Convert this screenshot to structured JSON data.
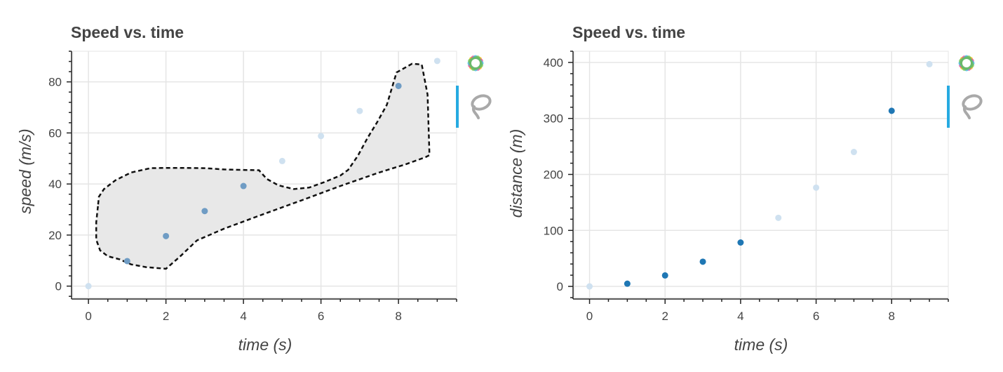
{
  "colors": {
    "point": "#1f77b4",
    "point_faded": "#cfe1f0",
    "point_left": "#6f9cc4",
    "lasso_fill": "#e8e8e8",
    "lasso_stroke": "#111111",
    "grid": "#e5e5e5",
    "axis": "#222222",
    "text": "#444444",
    "active_tool": "#26aae1"
  },
  "toolbar": {
    "logo_icon": "bokeh-logo-icon",
    "lasso_icon": "lasso-select-icon",
    "lasso_active": true
  },
  "chart_data": [
    {
      "type": "scatter",
      "title": "Speed vs. time",
      "xlabel": "time (s)",
      "ylabel": "speed (m/s)",
      "xlim": [
        -0.4,
        9.5
      ],
      "ylim": [
        -4.5,
        92
      ],
      "x_ticks": [
        0,
        2,
        4,
        6,
        8
      ],
      "y_ticks": [
        0,
        20,
        40,
        60,
        80
      ],
      "x_tick_labels": [
        "0",
        "2",
        "4",
        "6",
        "8"
      ],
      "y_tick_labels": [
        "0",
        "20",
        "40",
        "60",
        "80"
      ],
      "grid": true,
      "series": [
        {
          "x": [
            0,
            1,
            2,
            3,
            4,
            5,
            6,
            7,
            8,
            9
          ],
          "y": [
            0,
            9.8,
            19.6,
            29.4,
            39.2,
            49,
            58.8,
            68.6,
            78.4,
            88.2
          ],
          "selected": [
            false,
            true,
            true,
            true,
            true,
            false,
            false,
            false,
            true,
            false
          ]
        }
      ],
      "lasso_selection": {
        "x": [
          0.25,
          0.27,
          0.4,
          0.7,
          1.1,
          1.6,
          2.0,
          2.5,
          3.0,
          3.5,
          4.0,
          4.4,
          4.6,
          4.9,
          5.3,
          5.7,
          6.1,
          6.5,
          6.7,
          6.95,
          7.2,
          7.45,
          7.7,
          7.95,
          8.35,
          8.6,
          8.75,
          8.8,
          8.7,
          8.2,
          7.5,
          6.5,
          5.5,
          4.5,
          3.5,
          2.8,
          2.35,
          2.0,
          1.5,
          1.1,
          0.8,
          0.5,
          0.3,
          0.2,
          0.2
        ],
        "y": [
          32,
          35,
          38,
          41.5,
          44.5,
          46.2,
          46.3,
          46.3,
          46.2,
          45.7,
          45.5,
          45.4,
          42,
          39.5,
          38,
          38.6,
          40.8,
          43.3,
          45.5,
          51,
          58,
          64.2,
          71,
          83.7,
          87.1,
          86.8,
          75,
          51.3,
          50.5,
          47.8,
          44.5,
          39.2,
          33.6,
          28.1,
          22.5,
          17.9,
          11.4,
          6.8,
          7.4,
          8.5,
          10.5,
          11.7,
          14,
          18.2,
          25
        ]
      }
    },
    {
      "type": "scatter",
      "title": "Speed vs. time",
      "xlabel": "time (s)",
      "ylabel": "distance (m)",
      "xlim": [
        -0.4,
        9.5
      ],
      "ylim": [
        -20,
        420
      ],
      "x_ticks": [
        0,
        2,
        4,
        6,
        8
      ],
      "y_ticks": [
        0,
        100,
        200,
        300,
        400
      ],
      "x_tick_labels": [
        "0",
        "2",
        "4",
        "6",
        "8"
      ],
      "y_tick_labels": [
        "0",
        "100",
        "200",
        "300",
        "400"
      ],
      "grid": true,
      "series": [
        {
          "x": [
            0,
            1,
            2,
            3,
            4,
            5,
            6,
            7,
            8,
            9
          ],
          "y": [
            0,
            4.9,
            19.6,
            44.1,
            78.4,
            122.5,
            176.4,
            240.1,
            313.6,
            396.9
          ],
          "selected": [
            false,
            true,
            true,
            true,
            true,
            false,
            false,
            false,
            true,
            false
          ]
        }
      ]
    }
  ]
}
